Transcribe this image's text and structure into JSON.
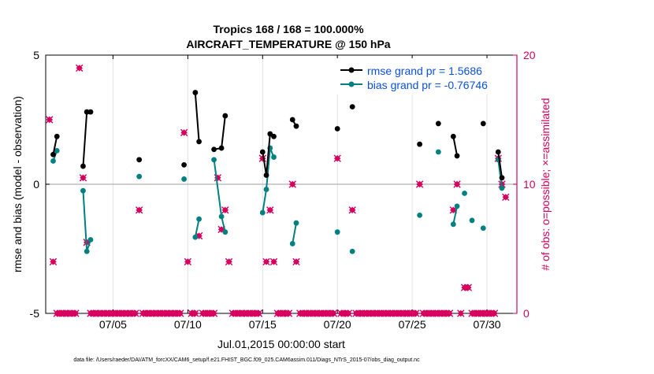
{
  "title_line1": "Tropics 168 / 168 = 100.000%",
  "title_line2": "AIRCRAFT_TEMPERATURE @ 150 hPa",
  "footer_note": "data file: /Users/raeder/DAI/ATM_forcXX/CAM6_setup/f.e21.FHIST_BGC.f09_025.CAM6assim.011/Diags_NTrS_2015-07/obs_diag_output.nc",
  "colors": {
    "rmse": "#000000",
    "bias": "#008080",
    "obs": "#d6005f",
    "zero_line": "#b0b0b0",
    "legend_text": "#0a50e0"
  },
  "chart_data": {
    "type": "line",
    "title": "Tropics 168 / 168 = 100.000% AIRCRAFT_TEMPERATURE @ 150 hPa",
    "xlabel": "Jul.01,2015 00:00:00 start",
    "ylabel": "rmse and bias (model - observation)",
    "y2label": "# of obs: o=possible; ×=assimilated",
    "xlim": [
      0.5,
      32.0
    ],
    "ylim": [
      -5,
      5
    ],
    "y2lim": [
      0,
      20
    ],
    "xticks": [
      5,
      10,
      15,
      20,
      25,
      30
    ],
    "xticklabels": [
      "07/05",
      "07/10",
      "07/15",
      "07/20",
      "07/25",
      "07/30"
    ],
    "yticks": [
      -5,
      0,
      5
    ],
    "yticklabels": [
      "-5",
      "0",
      "5"
    ],
    "y2ticks": [
      0,
      10,
      20
    ],
    "y2ticklabels": [
      "0",
      "10",
      "20"
    ],
    "legend": {
      "position": "top-right",
      "entries": [
        "rmse grand pr = 1.5686",
        "bias grand pr = -0.76746"
      ]
    },
    "rmse_segments": [
      [
        [
          1.0,
          1.15
        ],
        [
          1.25,
          1.85
        ]
      ],
      [
        [
          3.0,
          0.7
        ],
        [
          3.25,
          2.8
        ],
        [
          3.5,
          2.8
        ]
      ],
      [
        [
          6.75,
          0.95
        ]
      ],
      [
        [
          9.75,
          0.75
        ]
      ],
      [
        [
          10.5,
          3.55
        ],
        [
          10.75,
          1.65
        ]
      ],
      [
        [
          11.75,
          1.35
        ],
        [
          12.25,
          1.4
        ],
        [
          12.5,
          2.65
        ]
      ],
      [
        [
          15.0,
          1.25
        ],
        [
          15.25,
          0.35
        ],
        [
          15.5,
          1.95
        ],
        [
          15.75,
          1.85
        ]
      ],
      [
        [
          17.0,
          2.5
        ],
        [
          17.25,
          2.25
        ]
      ],
      [
        [
          20.0,
          2.15
        ]
      ],
      [
        [
          21.0,
          3.0
        ]
      ],
      [
        [
          25.5,
          1.55
        ]
      ],
      [
        [
          26.75,
          2.35
        ]
      ],
      [
        [
          27.75,
          1.85
        ],
        [
          28.0,
          1.1
        ]
      ],
      [
        [
          29.75,
          2.35
        ]
      ],
      [
        [
          30.75,
          1.25
        ],
        [
          31.0,
          0.25
        ]
      ]
    ],
    "bias_segments": [
      [
        [
          1.0,
          0.9
        ],
        [
          1.25,
          1.3
        ]
      ],
      [
        [
          3.0,
          -0.25
        ],
        [
          3.25,
          -2.6
        ],
        [
          3.5,
          -2.15
        ]
      ],
      [
        [
          6.75,
          0.3
        ]
      ],
      [
        [
          9.75,
          0.2
        ]
      ],
      [
        [
          10.5,
          -2.05
        ],
        [
          10.75,
          -1.35
        ]
      ],
      [
        [
          11.75,
          0.95
        ],
        [
          12.25,
          -1.25
        ],
        [
          12.5,
          -1.85
        ]
      ],
      [
        [
          15.0,
          -1.1
        ],
        [
          15.25,
          -0.2
        ],
        [
          15.5,
          1.4
        ],
        [
          15.75,
          1.05
        ]
      ],
      [
        [
          17.0,
          -2.3
        ],
        [
          17.25,
          -1.5
        ]
      ],
      [
        [
          20.0,
          -1.85
        ]
      ],
      [
        [
          21.0,
          -2.6
        ]
      ],
      [
        [
          25.5,
          -1.2
        ]
      ],
      [
        [
          26.75,
          1.25
        ]
      ],
      [
        [
          27.75,
          -1.55
        ],
        [
          28.0,
          -0.85
        ]
      ],
      [
        [
          28.5,
          -0.35
        ]
      ],
      [
        [
          29.0,
          -1.4
        ]
      ],
      [
        [
          29.75,
          -1.7
        ]
      ],
      [
        [
          30.75,
          0.95
        ],
        [
          31.0,
          -0.15
        ]
      ]
    ],
    "obs_count_points": [
      [
        0.75,
        15
      ],
      [
        1.0,
        4
      ],
      [
        1.25,
        0
      ],
      [
        1.5,
        0
      ],
      [
        1.75,
        0
      ],
      [
        2.0,
        0
      ],
      [
        2.25,
        0
      ],
      [
        2.5,
        0
      ],
      [
        2.75,
        19
      ],
      [
        3.0,
        10.5
      ],
      [
        3.25,
        5.5
      ],
      [
        3.5,
        0
      ],
      [
        3.75,
        0
      ],
      [
        4.0,
        0
      ],
      [
        4.25,
        0
      ],
      [
        4.5,
        0
      ],
      [
        4.75,
        0
      ],
      [
        5.0,
        0
      ],
      [
        5.25,
        0
      ],
      [
        5.5,
        0
      ],
      [
        5.75,
        0
      ],
      [
        6.0,
        0
      ],
      [
        6.25,
        0
      ],
      [
        6.5,
        0
      ],
      [
        6.75,
        8
      ],
      [
        7.0,
        0
      ],
      [
        7.25,
        0
      ],
      [
        7.5,
        0
      ],
      [
        7.75,
        0
      ],
      [
        8.0,
        0
      ],
      [
        8.25,
        0
      ],
      [
        8.5,
        0
      ],
      [
        8.75,
        0
      ],
      [
        9.0,
        0
      ],
      [
        9.25,
        0
      ],
      [
        9.5,
        0
      ],
      [
        9.75,
        14
      ],
      [
        10.0,
        4
      ],
      [
        10.25,
        0
      ],
      [
        10.5,
        0
      ],
      [
        10.75,
        6
      ],
      [
        11.0,
        0
      ],
      [
        11.25,
        0
      ],
      [
        11.5,
        0
      ],
      [
        11.75,
        0
      ],
      [
        12.0,
        10.5
      ],
      [
        12.25,
        6.5
      ],
      [
        12.5,
        8
      ],
      [
        12.75,
        4
      ],
      [
        13.0,
        0
      ],
      [
        13.25,
        0
      ],
      [
        13.5,
        0
      ],
      [
        13.75,
        0
      ],
      [
        14.0,
        0
      ],
      [
        14.25,
        0
      ],
      [
        14.5,
        0
      ],
      [
        14.75,
        0
      ],
      [
        15.0,
        12
      ],
      [
        15.25,
        4
      ],
      [
        15.5,
        8
      ],
      [
        15.75,
        4
      ],
      [
        16.0,
        0
      ],
      [
        16.25,
        0
      ],
      [
        16.5,
        0
      ],
      [
        16.75,
        0
      ],
      [
        17.0,
        10
      ],
      [
        17.25,
        4
      ],
      [
        17.5,
        0
      ],
      [
        17.75,
        0
      ],
      [
        18.0,
        0
      ],
      [
        18.25,
        0
      ],
      [
        18.5,
        0
      ],
      [
        18.75,
        0
      ],
      [
        19.0,
        0
      ],
      [
        19.25,
        0
      ],
      [
        19.5,
        0
      ],
      [
        19.75,
        0
      ],
      [
        20.0,
        12
      ],
      [
        20.25,
        0
      ],
      [
        20.5,
        0
      ],
      [
        20.75,
        0
      ],
      [
        21.0,
        8
      ],
      [
        21.25,
        0
      ],
      [
        21.5,
        0
      ],
      [
        21.75,
        0
      ],
      [
        22.0,
        0
      ],
      [
        22.25,
        0
      ],
      [
        22.5,
        0
      ],
      [
        22.75,
        0
      ],
      [
        23.0,
        0
      ],
      [
        23.25,
        0
      ],
      [
        23.5,
        0
      ],
      [
        23.75,
        0
      ],
      [
        24.0,
        0
      ],
      [
        24.25,
        0
      ],
      [
        24.5,
        0
      ],
      [
        24.75,
        0
      ],
      [
        25.0,
        0
      ],
      [
        25.25,
        0
      ],
      [
        25.5,
        10
      ],
      [
        25.75,
        0
      ],
      [
        26.0,
        0
      ],
      [
        26.25,
        0
      ],
      [
        26.5,
        0
      ],
      [
        26.75,
        0
      ],
      [
        27.0,
        0
      ],
      [
        27.25,
        0
      ],
      [
        27.5,
        0
      ],
      [
        27.75,
        8
      ],
      [
        28.0,
        10
      ],
      [
        28.25,
        0
      ],
      [
        28.5,
        2
      ],
      [
        28.75,
        2
      ],
      [
        29.0,
        0
      ],
      [
        29.25,
        0
      ],
      [
        29.5,
        0
      ],
      [
        29.75,
        0
      ],
      [
        30.0,
        0
      ],
      [
        30.25,
        0
      ],
      [
        30.5,
        0
      ],
      [
        30.75,
        12
      ],
      [
        31.0,
        10
      ],
      [
        31.25,
        9
      ]
    ]
  }
}
